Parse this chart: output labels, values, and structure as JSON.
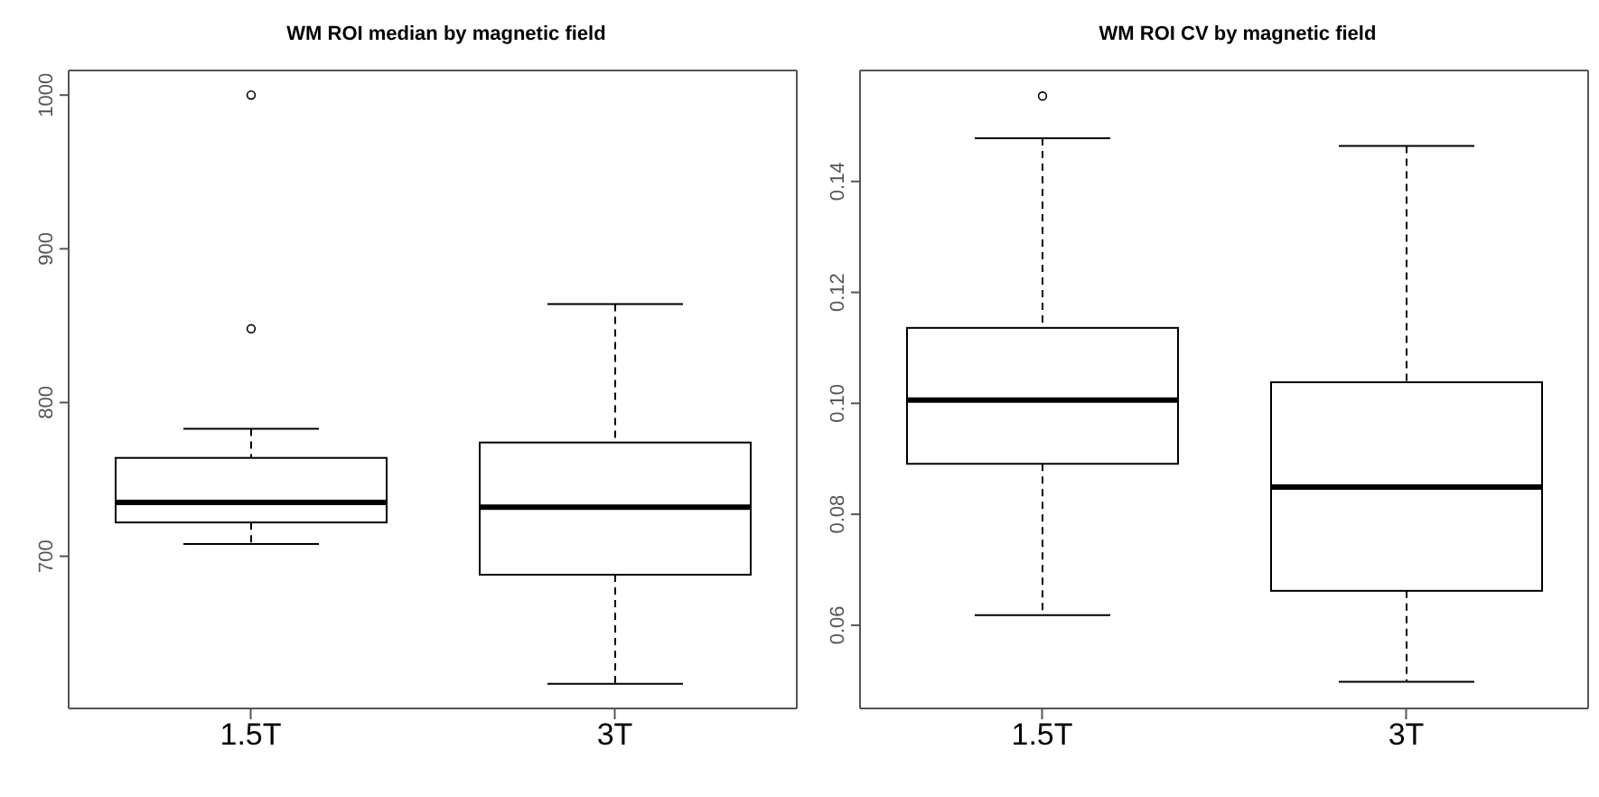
{
  "chart_data": [
    {
      "type": "box",
      "title": "WM ROI median by magnetic field",
      "categories": [
        "1.5T",
        "3T"
      ],
      "boxes": [
        {
          "low": 708,
          "q1": 722,
          "median": 735,
          "q3": 764,
          "high": 783,
          "outliers": [
            848,
            1000
          ]
        },
        {
          "low": 617,
          "q1": 688,
          "median": 732,
          "q3": 774,
          "high": 864
        }
      ],
      "ylim": [
        601,
        1016
      ],
      "yticks": [
        700,
        800,
        900,
        1000
      ],
      "grid": false
    },
    {
      "type": "box",
      "title": "WM ROI CV by magnetic field",
      "categories": [
        "1.5T",
        "3T"
      ],
      "boxes": [
        {
          "low": 0.0618,
          "q1": 0.0891,
          "median": 0.1006,
          "q3": 0.1136,
          "high": 0.1478,
          "outliers": [
            0.1554
          ]
        },
        {
          "low": 0.0498,
          "q1": 0.0662,
          "median": 0.0849,
          "q3": 0.1038,
          "high": 0.1464
        }
      ],
      "ylim": [
        0.045,
        0.16
      ],
      "yticks": [
        0.06,
        0.08,
        {
          "value": 0.1,
          "label": "0.10"
        },
        0.12,
        0.14
      ],
      "grid": false
    }
  ]
}
